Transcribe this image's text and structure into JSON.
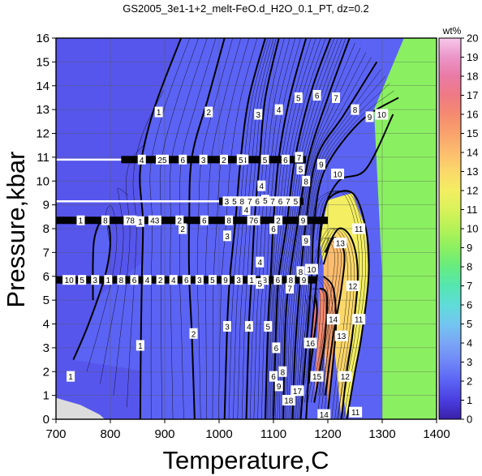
{
  "chart_data": {
    "type": "heatmap",
    "title": "GS2005_3e1-1+2_melt-FeO.d_H2O_0.1_PT, dz=0.2",
    "xlabel": "Temperature,C",
    "ylabel": "Pressure,kbar",
    "xlim": [
      700,
      1400
    ],
    "ylim": [
      0,
      16
    ],
    "x_ticks": [
      "700",
      "800",
      "900",
      "1000",
      "1100",
      "1200",
      "1300",
      "1400"
    ],
    "y_ticks": [
      "0",
      "1",
      "2",
      "3",
      "4",
      "5",
      "6",
      "7",
      "8",
      "9",
      "10",
      "11",
      "12",
      "13",
      "14",
      "15",
      "16"
    ],
    "grid": true,
    "colorbar": {
      "label": "wt%",
      "range": [
        0,
        20
      ],
      "ticks": [
        "0",
        "1",
        "2",
        "3",
        "4",
        "5",
        "6",
        "7",
        "8",
        "9",
        "10",
        "11",
        "12",
        "13",
        "14",
        "15",
        "16",
        "17",
        "18",
        "19",
        "20"
      ],
      "colors": [
        "#3a1fa8",
        "#4a3ee0",
        "#5b63f4",
        "#6f86f7",
        "#7aa6f6",
        "#72c6f0",
        "#5fdcd8",
        "#55e6b0",
        "#66ec80",
        "#8cf060",
        "#b4f257",
        "#d9f25a",
        "#f3ee62",
        "#fbd86a",
        "#fcbd6e",
        "#f9a26d",
        "#f58a70",
        "#ef7a84",
        "#ea7aa5",
        "#eb95c8",
        "#f7c8ec"
      ]
    },
    "contour_lines": [
      {
        "level": 1,
        "points": [
          [
            732,
            2.5
          ],
          [
            760,
            4
          ],
          [
            790,
            6
          ],
          [
            800,
            7.5
          ],
          [
            790,
            8.5
          ],
          [
            770,
            7.5
          ],
          [
            768,
            5
          ]
        ],
        "label_at": [
          735,
          2.8
        ]
      },
      {
        "level": 1,
        "points": [
          [
            855,
            0
          ],
          [
            856,
            3
          ],
          [
            858,
            6
          ],
          [
            860,
            8.3
          ],
          [
            855,
            10.5
          ],
          [
            880,
            13
          ],
          [
            930,
            16
          ]
        ],
        "label_at": [
          855,
          3.1
        ]
      },
      {
        "level": 2,
        "points": [
          [
            955,
            0
          ],
          [
            950,
            3.5
          ],
          [
            945,
            6
          ],
          [
            945,
            8.3
          ],
          [
            950,
            11
          ],
          [
            980,
            13.5
          ],
          [
            1010,
            16
          ]
        ],
        "label_at": [
          950,
          3.6
        ]
      },
      {
        "level": 3,
        "points": [
          [
            1010,
            0
          ],
          [
            1015,
            4
          ],
          [
            1020,
            6
          ],
          [
            1030,
            8.3
          ],
          [
            1040,
            11
          ],
          [
            1055,
            13.5
          ],
          [
            1085,
            16
          ]
        ],
        "label_at": [
          1020,
          3.9
        ]
      },
      {
        "level": 4,
        "points": [
          [
            1050,
            0
          ],
          [
            1055,
            4
          ],
          [
            1060,
            6
          ],
          [
            1065,
            8.3
          ],
          [
            1075,
            11
          ],
          [
            1085,
            13.5
          ],
          [
            1110,
            16
          ]
        ],
        "label_at": [
          1055,
          3.9
        ]
      },
      {
        "level": 5,
        "points": [
          [
            1085,
            0
          ],
          [
            1090,
            4
          ],
          [
            1095,
            6
          ],
          [
            1100,
            8.3
          ],
          [
            1110,
            11
          ],
          [
            1130,
            13.5
          ],
          [
            1160,
            16
          ]
        ],
        "label_at": [
          1095,
          3.9
        ]
      },
      {
        "level": 6,
        "points": [
          [
            1100,
            0
          ],
          [
            1105,
            4
          ],
          [
            1110,
            6
          ],
          [
            1125,
            8.3
          ],
          [
            1140,
            11
          ],
          [
            1170,
            13.8
          ],
          [
            1205,
            16
          ]
        ],
        "label_at": [
          1105,
          3.0
        ]
      },
      {
        "level": 7,
        "points": [
          [
            1118,
            0
          ],
          [
            1122,
            4
          ],
          [
            1130,
            6
          ],
          [
            1145,
            8.3
          ],
          [
            1165,
            11
          ],
          [
            1200,
            13.5
          ],
          [
            1240,
            16
          ]
        ],
        "label_at": [
          1130,
          5.5
        ]
      },
      {
        "level": 8,
        "points": [
          [
            1135,
            0
          ],
          [
            1140,
            3
          ],
          [
            1150,
            6
          ],
          [
            1160,
            8.3
          ],
          [
            1180,
            11
          ],
          [
            1230,
            12.8
          ],
          [
            1290,
            15
          ]
        ],
        "label_at": [
          1150,
          6.2
        ]
      },
      {
        "level": 9,
        "points": [
          [
            1150,
            0
          ],
          [
            1160,
            3
          ],
          [
            1170,
            6
          ],
          [
            1175,
            8.3
          ],
          [
            1195,
            10.5
          ],
          [
            1260,
            12.5
          ],
          [
            1330,
            13.5
          ]
        ],
        "label_at": [
          1165,
          7.5
        ]
      },
      {
        "level": 10,
        "points": [
          [
            1160,
            0
          ],
          [
            1168,
            3
          ],
          [
            1180,
            6
          ],
          [
            1190,
            8.5
          ],
          [
            1220,
            10
          ],
          [
            1270,
            10.5
          ],
          [
            1320,
            12.8
          ]
        ],
        "label_at": [
          1175,
          6.3
        ]
      },
      {
        "level": 11,
        "points": [
          [
            1235,
            0
          ],
          [
            1250,
            2
          ],
          [
            1262,
            3.5
          ],
          [
            1275,
            6
          ],
          [
            1270,
            8
          ],
          [
            1245,
            9.5
          ],
          [
            1200,
            9.2
          ],
          [
            1185,
            7.5
          ]
        ],
        "label_at": [
          1258,
          8.0
        ]
      },
      {
        "level": 12,
        "points": [
          [
            1225,
            0
          ],
          [
            1235,
            2
          ],
          [
            1245,
            3.5
          ],
          [
            1255,
            6
          ],
          [
            1245,
            7.5
          ],
          [
            1220,
            8
          ],
          [
            1195,
            7
          ]
        ],
        "label_at": [
          1245,
          5.6
        ]
      },
      {
        "level": 13,
        "points": [
          [
            1195,
            1
          ],
          [
            1210,
            3.5
          ],
          [
            1225,
            5.5
          ],
          [
            1230,
            7
          ],
          [
            1210,
            7.6
          ],
          [
            1192,
            6.5
          ]
        ],
        "label_at": [
          1225,
          3.5
        ]
      },
      {
        "level": 14,
        "points": [
          [
            1200,
            0.3
          ],
          [
            1210,
            2.5
          ],
          [
            1215,
            4
          ],
          [
            1210,
            5.5
          ],
          [
            1192,
            6
          ]
        ],
        "label_at": [
          1210,
          4.2
        ]
      },
      {
        "level": 15,
        "points": [
          [
            1175,
            0.7
          ],
          [
            1185,
            2
          ],
          [
            1195,
            3.5
          ],
          [
            1198,
            5.2
          ],
          [
            1185,
            5.5
          ]
        ],
        "label_at": [
          1182,
          1.8
        ]
      },
      {
        "level": 16,
        "points": [
          [
            1165,
            1.5
          ],
          [
            1172,
            3
          ],
          [
            1180,
            4.5
          ],
          [
            1176,
            5.2
          ]
        ],
        "label_at": [
          1168,
          3.2
        ]
      }
    ],
    "region_colors": {
      "low_melt_field": "#5656ec",
      "high_melt_field": "#8af061",
      "missing_data": "#dcdcdc",
      "contour_stroke": "#000000"
    },
    "contour_labels": [
      {
        "text": "1",
        "x": 727,
        "y": 1.8
      },
      {
        "text": "1",
        "x": 855,
        "y": 3.1
      },
      {
        "text": "2",
        "x": 953,
        "y": 3.6
      },
      {
        "text": "3",
        "x": 1015,
        "y": 3.9
      },
      {
        "text": "4",
        "x": 1055,
        "y": 3.9
      },
      {
        "text": "5",
        "x": 1090,
        "y": 3.9
      },
      {
        "text": "6",
        "x": 1105,
        "y": 3.0
      },
      {
        "text": "16",
        "x": 1168,
        "y": 3.2
      },
      {
        "text": "15",
        "x": 1180,
        "y": 1.8
      },
      {
        "text": "14",
        "x": 1210,
        "y": 4.2
      },
      {
        "text": "13",
        "x": 1225,
        "y": 3.5
      },
      {
        "text": "12",
        "x": 1232,
        "y": 1.8
      },
      {
        "text": "11",
        "x": 1257,
        "y": 4.2
      },
      {
        "text": "12",
        "x": 1246,
        "y": 5.6
      },
      {
        "text": "13",
        "x": 1223,
        "y": 7.4
      },
      {
        "text": "11",
        "x": 1257,
        "y": 8.0
      },
      {
        "text": "10",
        "x": 1170,
        "y": 6.3
      },
      {
        "text": "9",
        "x": 1160,
        "y": 7.5
      },
      {
        "text": "8",
        "x": 1150,
        "y": 6.2
      },
      {
        "text": "7",
        "x": 1130,
        "y": 5.5
      },
      {
        "text": "4",
        "x": 1075,
        "y": 6.6
      },
      {
        "text": "5",
        "x": 1085,
        "y": 9.2
      },
      {
        "text": "4",
        "x": 1078,
        "y": 9.8
      },
      {
        "text": "5",
        "x": 1150,
        "y": 10.5
      },
      {
        "text": "10",
        "x": 1218,
        "y": 10.3
      },
      {
        "text": "9",
        "x": 1277,
        "y": 12.7
      },
      {
        "text": "10",
        "x": 1299,
        "y": 12.8
      },
      {
        "text": "8",
        "x": 1250,
        "y": 13.0
      },
      {
        "text": "7",
        "x": 1215,
        "y": 13.5
      },
      {
        "text": "6",
        "x": 1180,
        "y": 13.6
      },
      {
        "text": "5",
        "x": 1146,
        "y": 13.5
      },
      {
        "text": "4",
        "x": 1110,
        "y": 13.0
      },
      {
        "text": "3",
        "x": 1072,
        "y": 12.8
      },
      {
        "text": "2",
        "x": 981,
        "y": 12.9
      },
      {
        "text": "1",
        "x": 889,
        "y": 12.9
      },
      {
        "text": "1",
        "x": 855,
        "y": 8.3
      },
      {
        "text": "2",
        "x": 933,
        "y": 8.0
      },
      {
        "text": "3",
        "x": 1015,
        "y": 7.7
      },
      {
        "text": "4",
        "x": 1050,
        "y": 8.8
      },
      {
        "text": "5",
        "x": 1040,
        "y": 10.9
      },
      {
        "text": "6",
        "x": 1100,
        "y": 8.0
      },
      {
        "text": "7",
        "x": 1147,
        "y": 11.0
      },
      {
        "text": "8",
        "x": 1160,
        "y": 10.0
      },
      {
        "text": "9",
        "x": 1188,
        "y": 10.7
      },
      {
        "text": "17",
        "x": 1144,
        "y": 1.2
      },
      {
        "text": "18",
        "x": 1128,
        "y": 0.8
      },
      {
        "text": "14",
        "x": 1193,
        "y": 0.2
      },
      {
        "text": "11",
        "x": 1251,
        "y": 0.3
      },
      {
        "text": "8",
        "x": 1117,
        "y": 2.0
      },
      {
        "text": "9",
        "x": 1110,
        "y": 1.4
      },
      {
        "text": "6",
        "x": 1100,
        "y": 1.8
      },
      {
        "text": "5",
        "x": 1075,
        "y": 5.7
      }
    ],
    "label_bands": [
      {
        "pressure": 10.9,
        "labels": [
          "4",
          "25",
          "6",
          "3",
          "2",
          "4",
          "5",
          "6"
        ],
        "x_from": 820,
        "x_to": 1160
      },
      {
        "pressure": 9.15,
        "labels": [
          "3",
          "5",
          "8",
          "7",
          "6",
          "4",
          "7",
          "6",
          "7",
          "5"
        ],
        "x_from": 1000,
        "x_to": 1155
      },
      {
        "pressure": 8.35,
        "labels": [
          "1",
          "8",
          "78",
          "43",
          "2",
          "6",
          "8",
          "76",
          "2",
          "9"
        ],
        "x_from": 700,
        "x_to": 1200
      },
      {
        "pressure": 5.85,
        "labels": [
          "10",
          "5",
          "3",
          "1",
          "8",
          "6",
          "4",
          "2",
          "4",
          "6",
          "3",
          "5",
          "9",
          "3",
          "1",
          "8",
          "6",
          "8",
          "9"
        ],
        "x_from": 700,
        "x_to": 1180
      }
    ]
  }
}
